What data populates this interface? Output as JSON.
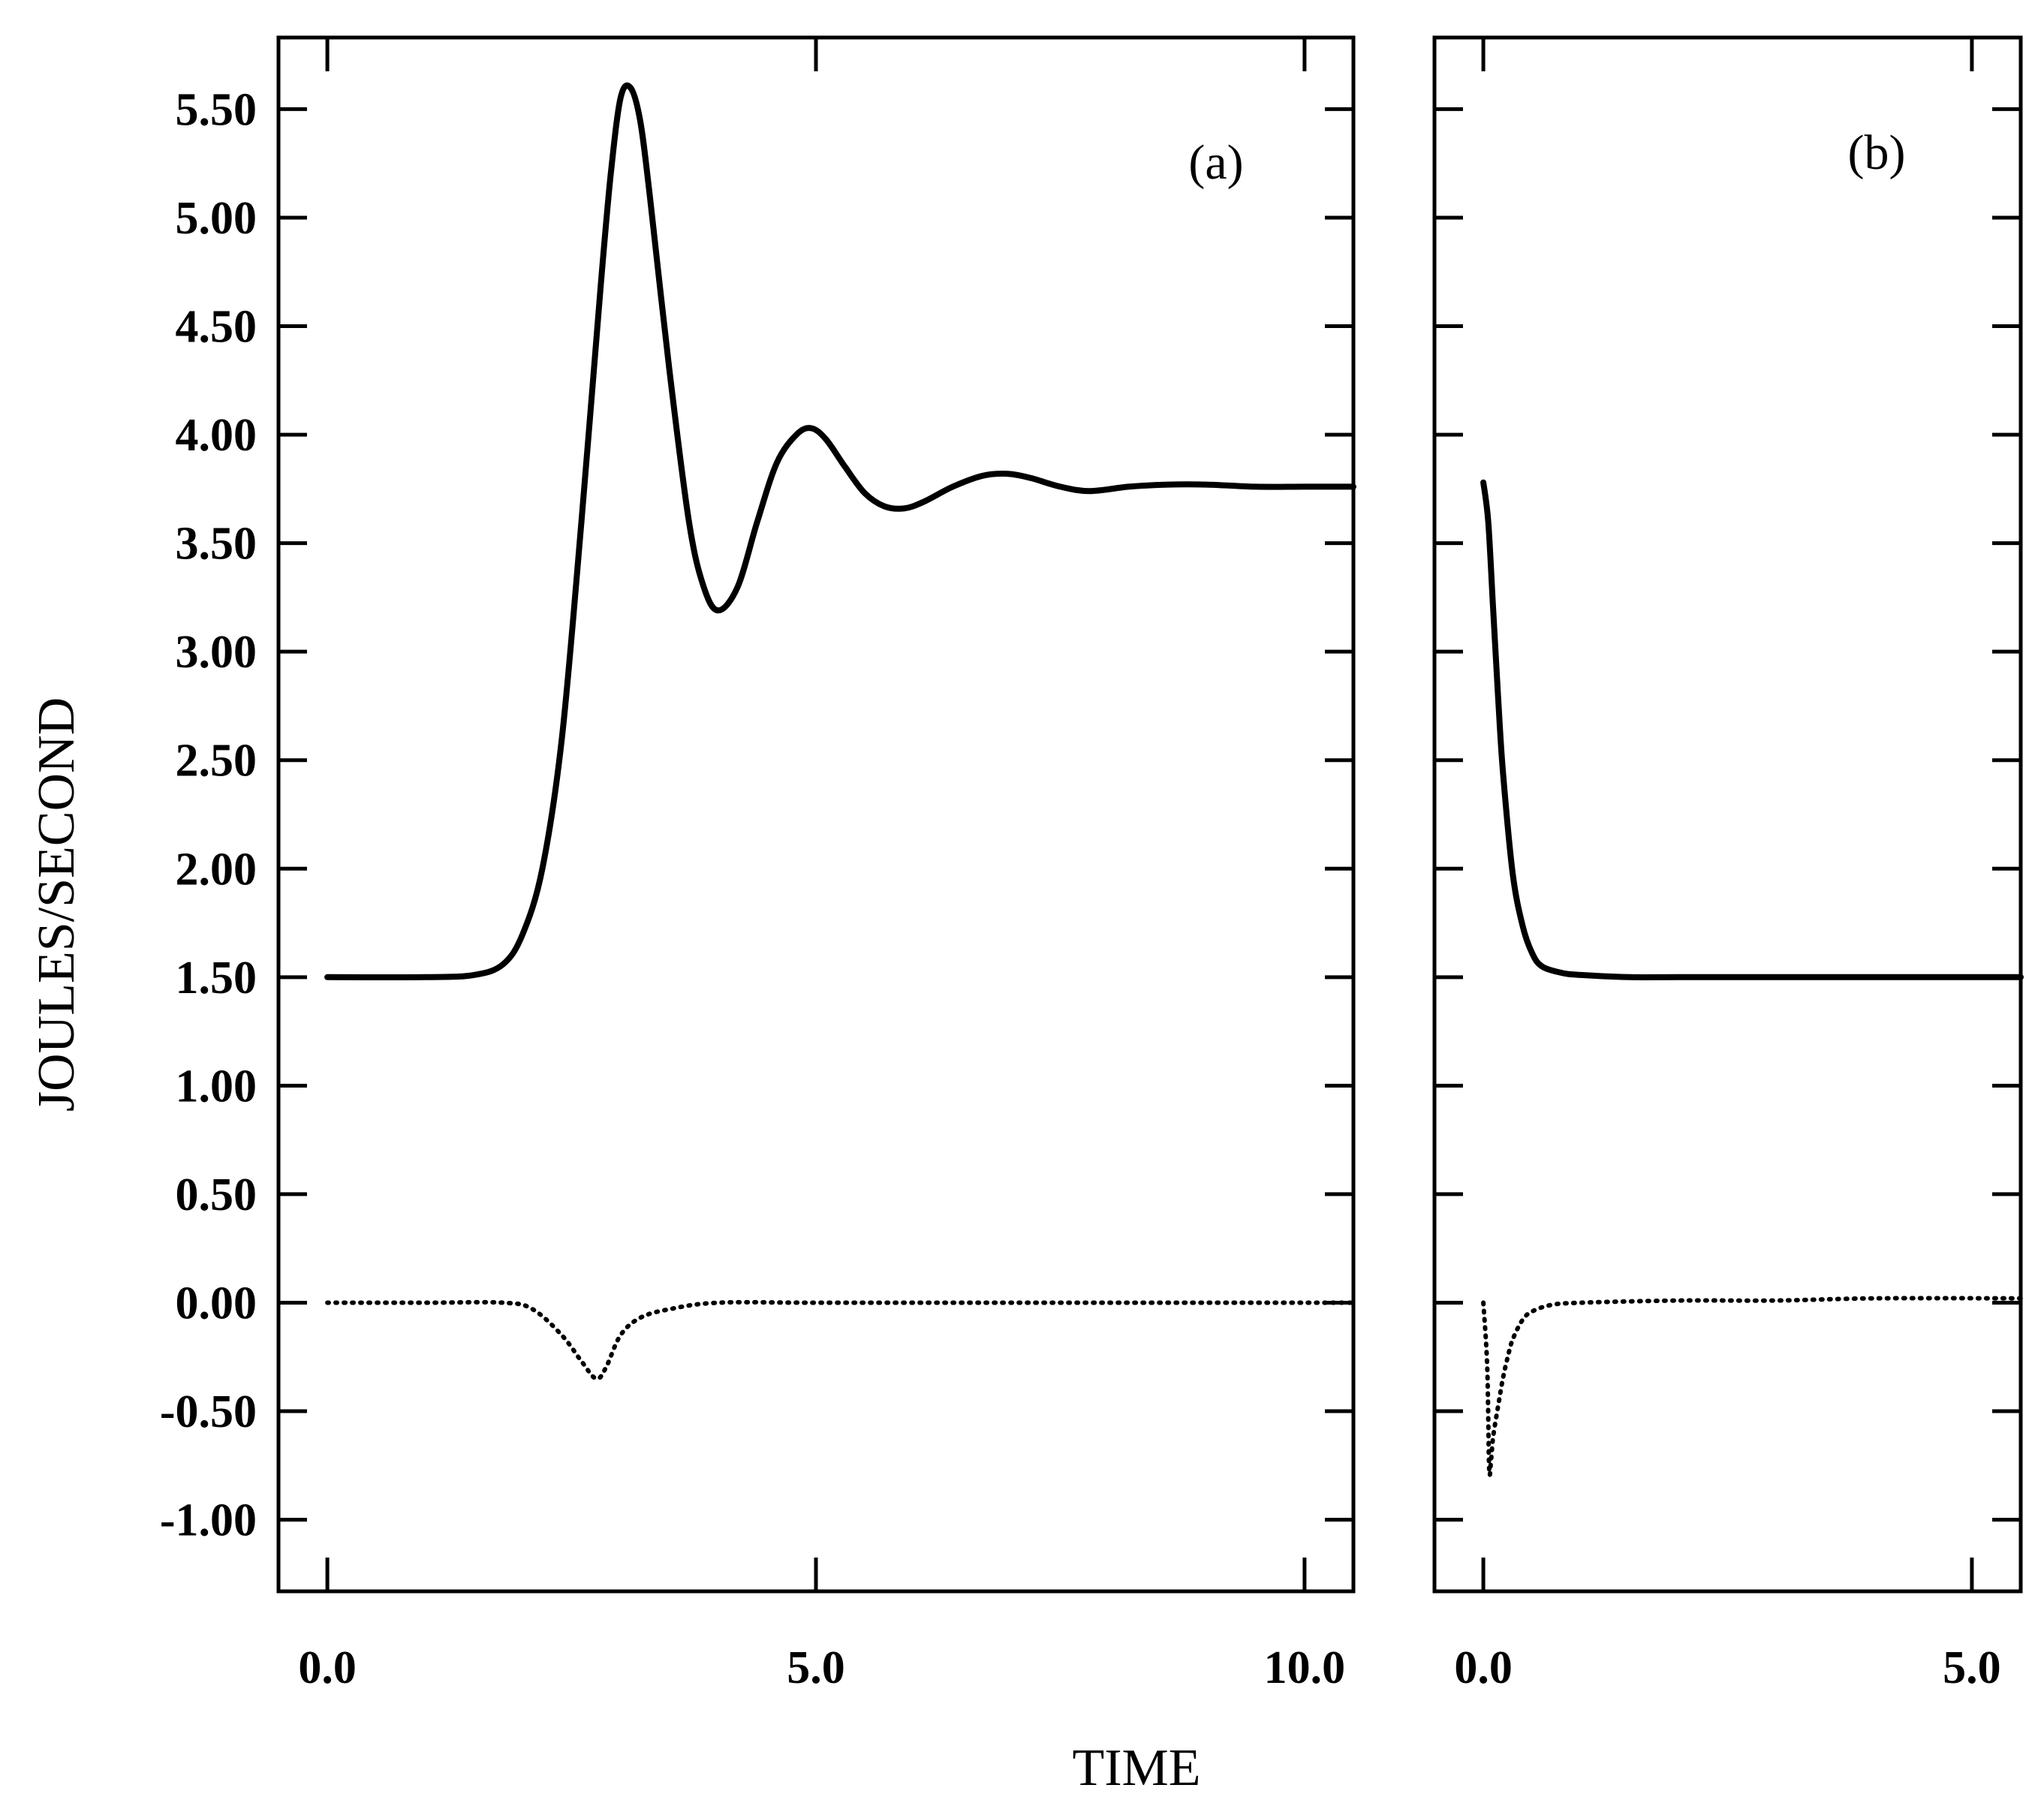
{
  "chart_data": {
    "type": "line",
    "ylabel": "JOULES/SECOND",
    "xlabel": "TIME",
    "yticks": [
      "5.50",
      "5.00",
      "4.50",
      "4.00",
      "3.50",
      "3.00",
      "2.50",
      "2.00",
      "1.50",
      "1.00",
      "0.50",
      "0.00",
      "-0.50",
      "-1.00"
    ],
    "panels": [
      {
        "label": "(a)",
        "xlim": [
          -0.5,
          10.5
        ],
        "ylim": [
          -1.33,
          5.83
        ],
        "xticks": [
          "0.0",
          "5.0",
          "10.0"
        ],
        "series": [
          {
            "name": "solid",
            "style": "solid",
            "x": [
              0.0,
              1.0,
              1.5,
              1.8,
              2.0,
              2.2,
              2.4,
              2.6,
              2.8,
              2.9,
              3.0,
              3.1,
              3.2,
              3.3,
              3.5,
              3.7,
              3.85,
              4.0,
              4.2,
              4.4,
              4.6,
              4.8,
              4.95,
              5.1,
              5.3,
              5.5,
              5.7,
              5.9,
              6.1,
              6.4,
              6.7,
              6.95,
              7.2,
              7.5,
              7.8,
              8.2,
              8.6,
              9.0,
              9.5,
              10.0,
              10.5
            ],
            "y": [
              1.5,
              1.5,
              1.51,
              1.56,
              1.7,
              2.0,
              2.6,
              3.6,
              4.7,
              5.2,
              5.55,
              5.6,
              5.45,
              5.1,
              4.3,
              3.6,
              3.3,
              3.19,
              3.3,
              3.6,
              3.87,
              4.0,
              4.03,
              3.98,
              3.85,
              3.73,
              3.67,
              3.66,
              3.69,
              3.76,
              3.81,
              3.82,
              3.8,
              3.76,
              3.74,
              3.76,
              3.77,
              3.77,
              3.76,
              3.76,
              3.76
            ]
          },
          {
            "name": "dotted",
            "style": "dotted",
            "x": [
              0.0,
              1.0,
              1.8,
              2.1,
              2.4,
              2.6,
              2.75,
              2.85,
              3.0,
              3.2,
              3.5,
              4.0,
              5.0,
              7.0,
              10.5
            ],
            "y": [
              0.0,
              0.0,
              0.0,
              -0.03,
              -0.15,
              -0.27,
              -0.35,
              -0.3,
              -0.15,
              -0.07,
              -0.03,
              0.0,
              0.0,
              0.0,
              0.0
            ]
          }
        ]
      },
      {
        "label": "(b)",
        "xlim": [
          -0.5,
          5.5
        ],
        "ylim": [
          -1.33,
          5.83
        ],
        "xticks": [
          "0.0",
          "5.0"
        ],
        "series": [
          {
            "name": "solid",
            "style": "solid",
            "x": [
              0.0,
              0.05,
              0.1,
              0.15,
              0.2,
              0.3,
              0.4,
              0.5,
              0.6,
              0.8,
              1.0,
              1.5,
              2.0,
              3.0,
              4.0,
              5.5
            ],
            "y": [
              3.78,
              3.6,
              3.2,
              2.8,
              2.45,
              1.98,
              1.74,
              1.61,
              1.55,
              1.52,
              1.51,
              1.5,
              1.5,
              1.5,
              1.5,
              1.5
            ]
          },
          {
            "name": "dotted",
            "style": "dotted",
            "x": [
              0.0,
              0.04,
              0.06,
              0.08,
              0.1,
              0.15,
              0.2,
              0.25,
              0.3,
              0.4,
              0.5,
              0.7,
              1.0,
              2.0,
              3.0,
              4.0,
              5.5
            ],
            "y": [
              0.0,
              -0.3,
              -0.77,
              -0.72,
              -0.62,
              -0.48,
              -0.35,
              -0.25,
              -0.17,
              -0.08,
              -0.04,
              -0.01,
              0.0,
              0.01,
              0.01,
              0.02,
              0.02
            ]
          }
        ]
      }
    ]
  }
}
